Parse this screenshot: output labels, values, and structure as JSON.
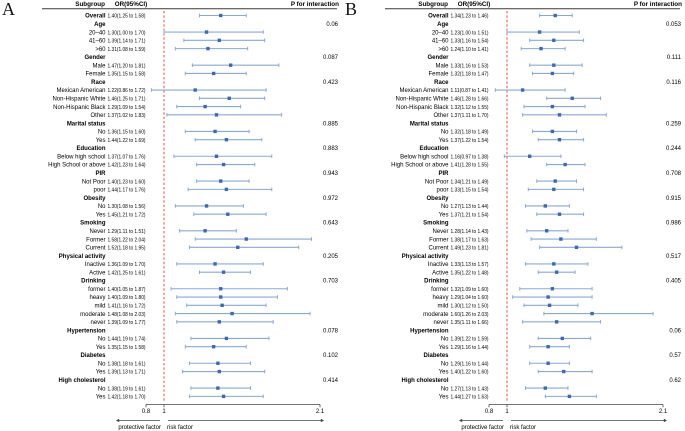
{
  "style": {
    "ci_line_color": "#8aa8d4",
    "marker_color": "#3f69ae",
    "ref_line_color": "#e8392f",
    "rule_color": "#3a3a3a",
    "axis_color": "#444444"
  },
  "chart_data": [
    {
      "type": "scatter",
      "subtype": "forest-plot",
      "panel": "A",
      "title": "",
      "columns": [
        "Subgroup",
        "OR(95%CI)",
        "P for interaction"
      ],
      "xlim": [
        0.8,
        2.1
      ],
      "x_ticks": [
        0.8,
        1,
        2.1
      ],
      "x_tick_labels": [
        "0.8",
        "1",
        "2.1"
      ],
      "ref_line": 1,
      "footer_left": "protective factor",
      "footer_right": "risk factor",
      "rows": [
        {
          "kind": "overall",
          "label": "Overall",
          "or": "1.40(1.25 to 1.58)",
          "est": 1.4,
          "lo": 1.25,
          "hi": 1.58,
          "p": ""
        },
        {
          "kind": "header",
          "label": "Age",
          "p": "0.06"
        },
        {
          "kind": "item",
          "label": "20–40",
          "or": "1.30(1.00 to 1.70)",
          "est": 1.3,
          "lo": 1.0,
          "hi": 1.7,
          "p": ""
        },
        {
          "kind": "item",
          "label": "41–60",
          "or": "1.39(1.14 to 1.71)",
          "est": 1.39,
          "lo": 1.14,
          "hi": 1.71,
          "p": ""
        },
        {
          "kind": "item",
          "label": ">60",
          "or": "1.31(1.08 to 1.59)",
          "est": 1.31,
          "lo": 1.08,
          "hi": 1.59,
          "p": ""
        },
        {
          "kind": "header",
          "label": "Gender",
          "p": "0.087"
        },
        {
          "kind": "item",
          "label": "Male",
          "or": "1.47(1.20 to 1.81)",
          "est": 1.47,
          "lo": 1.2,
          "hi": 1.81,
          "p": ""
        },
        {
          "kind": "item",
          "label": "Female",
          "or": "1.35(1.15 to 1.58)",
          "est": 1.35,
          "lo": 1.15,
          "hi": 1.58,
          "p": ""
        },
        {
          "kind": "header",
          "label": "Race",
          "p": "0.423"
        },
        {
          "kind": "item",
          "label": "Mexican American",
          "or": "1.22(0.86 to 1.72)",
          "est": 1.22,
          "lo": 0.86,
          "hi": 1.72,
          "p": ""
        },
        {
          "kind": "item",
          "label": "Non-Hispanic White",
          "or": "1.46(1.25 to 1.71)",
          "est": 1.46,
          "lo": 1.25,
          "hi": 1.71,
          "p": ""
        },
        {
          "kind": "item",
          "label": "Non-Hispanic Black",
          "or": "1.29(1.09 to 1.54)",
          "est": 1.29,
          "lo": 1.09,
          "hi": 1.54,
          "p": ""
        },
        {
          "kind": "item",
          "label": "Other",
          "or": "1.37(1.02 to 1.83)",
          "est": 1.37,
          "lo": 1.02,
          "hi": 1.83,
          "p": ""
        },
        {
          "kind": "header",
          "label": "Marital status",
          "p": "0.885"
        },
        {
          "kind": "item",
          "label": "No",
          "or": "1.36(1.15 to 1.60)",
          "est": 1.36,
          "lo": 1.15,
          "hi": 1.6,
          "p": ""
        },
        {
          "kind": "item",
          "label": "Yes",
          "or": "1.44(1.22 to 1.69)",
          "est": 1.44,
          "lo": 1.22,
          "hi": 1.69,
          "p": ""
        },
        {
          "kind": "header",
          "label": "Education",
          "p": "0.883"
        },
        {
          "kind": "item",
          "label": "Below high school",
          "or": "1.37(1.07 to 1.76)",
          "est": 1.37,
          "lo": 1.07,
          "hi": 1.76,
          "p": ""
        },
        {
          "kind": "item",
          "label": "High School or above",
          "or": "1.42(1.23 to 1.64)",
          "est": 1.42,
          "lo": 1.23,
          "hi": 1.64,
          "p": ""
        },
        {
          "kind": "header",
          "label": "PIR",
          "p": "0.943"
        },
        {
          "kind": "item",
          "label": "Not Poor",
          "or": "1.40(1.23 to 1.60)",
          "est": 1.4,
          "lo": 1.23,
          "hi": 1.6,
          "p": ""
        },
        {
          "kind": "item",
          "label": "poor",
          "or": "1.44(1.17 to 1.76)",
          "est": 1.44,
          "lo": 1.17,
          "hi": 1.76,
          "p": ""
        },
        {
          "kind": "header",
          "label": "Obesity",
          "p": "0.972"
        },
        {
          "kind": "item",
          "label": "No",
          "or": "1.30(1.08 to 1.56)",
          "est": 1.3,
          "lo": 1.08,
          "hi": 1.56,
          "p": ""
        },
        {
          "kind": "item",
          "label": "Yes",
          "or": "1.45(1.21 to 1.72)",
          "est": 1.45,
          "lo": 1.21,
          "hi": 1.72,
          "p": ""
        },
        {
          "kind": "header",
          "label": "Smoking",
          "p": "0.643"
        },
        {
          "kind": "item",
          "label": "Never",
          "or": "1.29(1.11 to 1.51)",
          "est": 1.29,
          "lo": 1.11,
          "hi": 1.51,
          "p": ""
        },
        {
          "kind": "item",
          "label": "Former",
          "or": "1.58(1.22 to 2.04)",
          "est": 1.58,
          "lo": 1.22,
          "hi": 2.04,
          "p": ""
        },
        {
          "kind": "item",
          "label": "Current",
          "or": "1.52(1.18 to 1.95)",
          "est": 1.52,
          "lo": 1.18,
          "hi": 1.95,
          "p": ""
        },
        {
          "kind": "header",
          "label": "Physical activity",
          "p": "0.205"
        },
        {
          "kind": "item",
          "label": "Inactive",
          "or": "1.36(1.09 to 1.70)",
          "est": 1.36,
          "lo": 1.09,
          "hi": 1.7,
          "p": ""
        },
        {
          "kind": "item",
          "label": "Active",
          "or": "1.42(1.25 to 1.61)",
          "est": 1.42,
          "lo": 1.25,
          "hi": 1.61,
          "p": ""
        },
        {
          "kind": "header",
          "label": "Drinking",
          "p": "0.703"
        },
        {
          "kind": "item",
          "label": "former",
          "or": "1.40(1.05 to 1.87)",
          "est": 1.4,
          "lo": 1.05,
          "hi": 1.87,
          "p": ""
        },
        {
          "kind": "item",
          "label": "heavy",
          "or": "1.40(1.09 to 1.80)",
          "est": 1.4,
          "lo": 1.09,
          "hi": 1.8,
          "p": ""
        },
        {
          "kind": "item",
          "label": "mild",
          "or": "1.41(1.16 to 1.72)",
          "est": 1.41,
          "lo": 1.16,
          "hi": 1.72,
          "p": ""
        },
        {
          "kind": "item",
          "label": "moderate",
          "or": "1.48(1.08 to 2.03)",
          "est": 1.48,
          "lo": 1.08,
          "hi": 2.03,
          "p": ""
        },
        {
          "kind": "item",
          "label": "never",
          "or": "1.39(1.09 to 1.77)",
          "est": 1.39,
          "lo": 1.09,
          "hi": 1.77,
          "p": ""
        },
        {
          "kind": "header",
          "label": "Hypertension",
          "p": "0.078"
        },
        {
          "kind": "item",
          "label": "No",
          "or": "1.44(1.19 to 1.74)",
          "est": 1.44,
          "lo": 1.19,
          "hi": 1.74,
          "p": ""
        },
        {
          "kind": "item",
          "label": "Yes",
          "or": "1.35(1.15 to 1.58)",
          "est": 1.35,
          "lo": 1.15,
          "hi": 1.58,
          "p": ""
        },
        {
          "kind": "header",
          "label": "Diabetes",
          "p": "0.102"
        },
        {
          "kind": "item",
          "label": "No",
          "or": "1.38(1.18 to 1.61)",
          "est": 1.38,
          "lo": 1.18,
          "hi": 1.61,
          "p": ""
        },
        {
          "kind": "item",
          "label": "Yes",
          "or": "1.39(1.13 to 1.71)",
          "est": 1.39,
          "lo": 1.13,
          "hi": 1.71,
          "p": ""
        },
        {
          "kind": "header",
          "label": "High cholesterol",
          "p": "0.414"
        },
        {
          "kind": "item",
          "label": "No",
          "or": "1.38(1.19 to 1.61)",
          "est": 1.38,
          "lo": 1.19,
          "hi": 1.61,
          "p": ""
        },
        {
          "kind": "item",
          "label": "Yes",
          "or": "1.42(1.18 to 1.70)",
          "est": 1.42,
          "lo": 1.18,
          "hi": 1.7,
          "p": ""
        }
      ]
    },
    {
      "type": "scatter",
      "subtype": "forest-plot",
      "panel": "B",
      "title": "",
      "columns": [
        "Subgroup",
        "OR(95%CI)",
        "P for interaction"
      ],
      "xlim": [
        0.8,
        2.1
      ],
      "x_ticks": [
        0.8,
        1,
        2.1
      ],
      "x_tick_labels": [
        "0.8",
        "1",
        "2.1"
      ],
      "ref_line": 1,
      "footer_left": "protective factor",
      "footer_right": "risk factor",
      "rows": [
        {
          "kind": "overall",
          "label": "Overall",
          "or": "1.34(1.23 to 1.46)",
          "est": 1.34,
          "lo": 1.23,
          "hi": 1.46,
          "p": ""
        },
        {
          "kind": "header",
          "label": "Age",
          "p": "0.053"
        },
        {
          "kind": "item",
          "label": "20–40",
          "or": "1.23(1.00 to 1.51)",
          "est": 1.23,
          "lo": 1.0,
          "hi": 1.51,
          "p": ""
        },
        {
          "kind": "item",
          "label": "41–60",
          "or": "1.33(1.16 to 1.54)",
          "est": 1.33,
          "lo": 1.16,
          "hi": 1.54,
          "p": ""
        },
        {
          "kind": "item",
          "label": ">60",
          "or": "1.24(1.10 to 1.41)",
          "est": 1.24,
          "lo": 1.1,
          "hi": 1.41,
          "p": ""
        },
        {
          "kind": "header",
          "label": "Gender",
          "p": "0.111"
        },
        {
          "kind": "item",
          "label": "Male",
          "or": "1.33(1.16 to 1.53)",
          "est": 1.33,
          "lo": 1.16,
          "hi": 1.53,
          "p": ""
        },
        {
          "kind": "item",
          "label": "Female",
          "or": "1.32(1.18 to 1.47)",
          "est": 1.32,
          "lo": 1.18,
          "hi": 1.47,
          "p": ""
        },
        {
          "kind": "header",
          "label": "Race",
          "p": "0.116"
        },
        {
          "kind": "item",
          "label": "Mexican American",
          "or": "1.11(0.87 to 1.41)",
          "est": 1.11,
          "lo": 0.87,
          "hi": 1.41,
          "p": ""
        },
        {
          "kind": "item",
          "label": "Non-Hispanic White",
          "or": "1.46(1.28 to 1.66)",
          "est": 1.46,
          "lo": 1.28,
          "hi": 1.66,
          "p": ""
        },
        {
          "kind": "item",
          "label": "Non-Hispanic Black",
          "or": "1.32(1.12 to 1.55)",
          "est": 1.32,
          "lo": 1.12,
          "hi": 1.55,
          "p": ""
        },
        {
          "kind": "item",
          "label": "Other",
          "or": "1.37(1.11 to 1.70)",
          "est": 1.37,
          "lo": 1.11,
          "hi": 1.7,
          "p": ""
        },
        {
          "kind": "header",
          "label": "Marital status",
          "p": "0.259"
        },
        {
          "kind": "item",
          "label": "No",
          "or": "1.32(1.18 to 1.49)",
          "est": 1.32,
          "lo": 1.18,
          "hi": 1.49,
          "p": ""
        },
        {
          "kind": "item",
          "label": "Yes",
          "or": "1.37(1.22 to 1.54)",
          "est": 1.37,
          "lo": 1.22,
          "hi": 1.54,
          "p": ""
        },
        {
          "kind": "header",
          "label": "Education",
          "p": "0.244"
        },
        {
          "kind": "item",
          "label": "Below high school",
          "or": "1.16(0.97 to 1.38)",
          "est": 1.16,
          "lo": 0.97,
          "hi": 1.38,
          "p": ""
        },
        {
          "kind": "item",
          "label": "High School or above",
          "or": "1.41(1.28 to 1.55)",
          "est": 1.41,
          "lo": 1.28,
          "hi": 1.55,
          "p": ""
        },
        {
          "kind": "header",
          "label": "PIR",
          "p": "0.708"
        },
        {
          "kind": "item",
          "label": "Not Poor",
          "or": "1.34(1.21 to 1.49)",
          "est": 1.34,
          "lo": 1.21,
          "hi": 1.49,
          "p": ""
        },
        {
          "kind": "item",
          "label": "poor",
          "or": "1.33(1.15 to 1.54)",
          "est": 1.33,
          "lo": 1.15,
          "hi": 1.54,
          "p": ""
        },
        {
          "kind": "header",
          "label": "Obesity",
          "p": "0.915"
        },
        {
          "kind": "item",
          "label": "No",
          "or": "1.27(1.13 to 1.44)",
          "est": 1.27,
          "lo": 1.13,
          "hi": 1.44,
          "p": ""
        },
        {
          "kind": "item",
          "label": "Yes",
          "or": "1.37(1.21 to 1.54)",
          "est": 1.37,
          "lo": 1.21,
          "hi": 1.54,
          "p": ""
        },
        {
          "kind": "header",
          "label": "Smoking",
          "p": "0.986"
        },
        {
          "kind": "item",
          "label": "Never",
          "or": "1.28(1.14 to 1.43)",
          "est": 1.28,
          "lo": 1.14,
          "hi": 1.43,
          "p": ""
        },
        {
          "kind": "item",
          "label": "Former",
          "or": "1.38(1.17 to 1.63)",
          "est": 1.38,
          "lo": 1.17,
          "hi": 1.63,
          "p": ""
        },
        {
          "kind": "item",
          "label": "Current",
          "or": "1.49(1.23 to 1.81)",
          "est": 1.49,
          "lo": 1.23,
          "hi": 1.81,
          "p": ""
        },
        {
          "kind": "header",
          "label": "Physical activity",
          "p": "0.517"
        },
        {
          "kind": "item",
          "label": "Inactive",
          "or": "1.33(1.13 to 1.57)",
          "est": 1.33,
          "lo": 1.13,
          "hi": 1.57,
          "p": ""
        },
        {
          "kind": "item",
          "label": "Active",
          "or": "1.35(1.22 to 1.48)",
          "est": 1.35,
          "lo": 1.22,
          "hi": 1.48,
          "p": ""
        },
        {
          "kind": "header",
          "label": "Drinking",
          "p": "0.405"
        },
        {
          "kind": "item",
          "label": "former",
          "or": "1.32(1.09 to 1.60)",
          "est": 1.32,
          "lo": 1.09,
          "hi": 1.6,
          "p": ""
        },
        {
          "kind": "item",
          "label": "heavy",
          "or": "1.29(1.04 to 1.60)",
          "est": 1.29,
          "lo": 1.04,
          "hi": 1.6,
          "p": ""
        },
        {
          "kind": "item",
          "label": "mild",
          "or": "1.30(1.12 to 1.50)",
          "est": 1.3,
          "lo": 1.12,
          "hi": 1.5,
          "p": ""
        },
        {
          "kind": "item",
          "label": "moderate",
          "or": "1.60(1.26 to 2.03)",
          "est": 1.6,
          "lo": 1.26,
          "hi": 2.03,
          "p": ""
        },
        {
          "kind": "item",
          "label": "never",
          "or": "1.35(1.11 to 1.66)",
          "est": 1.35,
          "lo": 1.11,
          "hi": 1.66,
          "p": ""
        },
        {
          "kind": "header",
          "label": "Hypertension",
          "p": "0.06"
        },
        {
          "kind": "item",
          "label": "No",
          "or": "1.39(1.22 to 1.59)",
          "est": 1.39,
          "lo": 1.22,
          "hi": 1.59,
          "p": ""
        },
        {
          "kind": "item",
          "label": "Yes",
          "or": "1.29(1.16 to 1.44)",
          "est": 1.29,
          "lo": 1.16,
          "hi": 1.44,
          "p": ""
        },
        {
          "kind": "header",
          "label": "Diabetes",
          "p": "0.57"
        },
        {
          "kind": "item",
          "label": "No",
          "or": "1.29(1.16 to 1.44)",
          "est": 1.29,
          "lo": 1.16,
          "hi": 1.44,
          "p": ""
        },
        {
          "kind": "item",
          "label": "Yes",
          "or": "1.40(1.22 to 1.60)",
          "est": 1.4,
          "lo": 1.22,
          "hi": 1.6,
          "p": ""
        },
        {
          "kind": "header",
          "label": "High cholesterol",
          "p": "0.62"
        },
        {
          "kind": "item",
          "label": "No",
          "or": "1.27(1.13 to 1.43)",
          "est": 1.27,
          "lo": 1.13,
          "hi": 1.43,
          "p": ""
        },
        {
          "kind": "item",
          "label": "Yes",
          "or": "1.44(1.27 to 1.63)",
          "est": 1.44,
          "lo": 1.27,
          "hi": 1.63,
          "p": ""
        }
      ]
    }
  ]
}
